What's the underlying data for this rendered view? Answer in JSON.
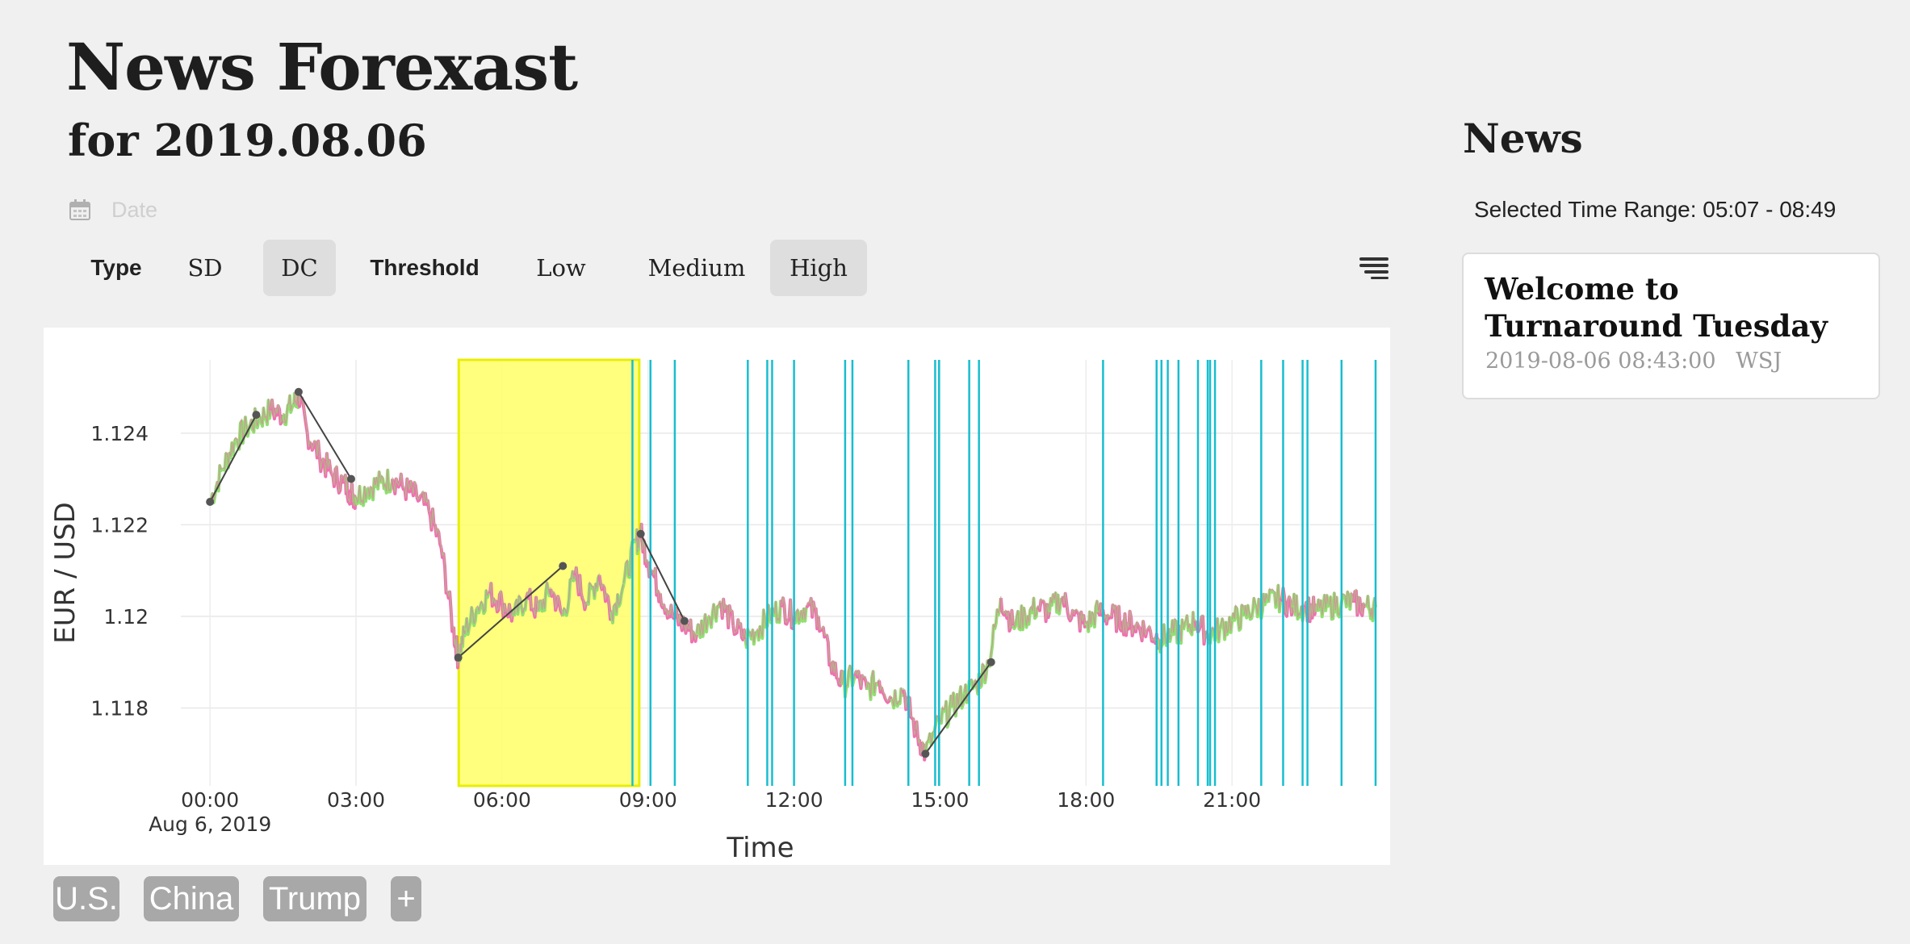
{
  "header": {
    "title": "News Forexast",
    "subtitle": "for 2019.08.06",
    "date_placeholder": "Date"
  },
  "controls": {
    "type_label": "Type",
    "type_options": [
      "SD",
      "DC"
    ],
    "type_selected": "DC",
    "threshold_label": "Threshold",
    "threshold_options": [
      "Low",
      "Medium",
      "High"
    ],
    "threshold_selected": "High",
    "menu_icon": "hamburger-menu-icon"
  },
  "tags": [
    "U.S.",
    "China",
    "Trump",
    "+"
  ],
  "news": {
    "title": "News",
    "time_range_label": "Selected Time Range:",
    "time_range": "05:07 - 08:49",
    "items": [
      {
        "headline": "Welcome to Turnaround Tuesday",
        "timestamp": "2019-08-06 08:43:00",
        "source": "WSJ"
      }
    ]
  },
  "colors": {
    "background": "#f0f0f0",
    "selection": "#ffff66",
    "event_line": "#17becf",
    "price_up": "#90e070",
    "price_down": "#f070b0",
    "trend_line": "#444444",
    "tag": "#a8a8a8"
  },
  "chart_data": {
    "type": "line",
    "xlabel": "Time",
    "ylabel": "EUR / USD",
    "x_range_hours": [
      -0.6,
      23.95
    ],
    "ylim": [
      1.1163,
      1.1256
    ],
    "yticks": [
      1.118,
      1.12,
      1.122,
      1.124
    ],
    "ytick_labels": [
      "1.118",
      "1.12",
      "1.122",
      "1.124"
    ],
    "xticks_hours": [
      0,
      3,
      6,
      9,
      12,
      15,
      18,
      21
    ],
    "xtick_labels": [
      "00:00",
      "03:00",
      "06:00",
      "09:00",
      "12:00",
      "15:00",
      "18:00",
      "21:00"
    ],
    "x_date_label": "Aug 6, 2019",
    "grid": true,
    "price_series": [
      [
        0.0,
        1.1225
      ],
      [
        0.25,
        1.1232
      ],
      [
        0.5,
        1.1238
      ],
      [
        0.75,
        1.1241
      ],
      [
        1.0,
        1.1243
      ],
      [
        1.25,
        1.1245
      ],
      [
        1.5,
        1.1244
      ],
      [
        1.7,
        1.1246
      ],
      [
        1.82,
        1.1248
      ],
      [
        2.0,
        1.124
      ],
      [
        2.25,
        1.1235
      ],
      [
        2.5,
        1.1231
      ],
      [
        2.75,
        1.1229
      ],
      [
        2.9,
        1.1227
      ],
      [
        3.0,
        1.1226
      ],
      [
        3.25,
        1.1228
      ],
      [
        3.5,
        1.1229
      ],
      [
        3.75,
        1.123
      ],
      [
        4.0,
        1.1228
      ],
      [
        4.25,
        1.1226
      ],
      [
        4.5,
        1.1223
      ],
      [
        4.75,
        1.1215
      ],
      [
        5.0,
        1.1197
      ],
      [
        5.1,
        1.1191
      ],
      [
        5.25,
        1.1197
      ],
      [
        5.5,
        1.1202
      ],
      [
        5.75,
        1.1205
      ],
      [
        6.0,
        1.1203
      ],
      [
        6.25,
        1.12
      ],
      [
        6.5,
        1.1204
      ],
      [
        6.75,
        1.1201
      ],
      [
        7.0,
        1.1206
      ],
      [
        7.25,
        1.12
      ],
      [
        7.5,
        1.1209
      ],
      [
        7.75,
        1.1203
      ],
      [
        8.0,
        1.1209
      ],
      [
        8.25,
        1.1201
      ],
      [
        8.5,
        1.1207
      ],
      [
        8.75,
        1.1216
      ],
      [
        8.85,
        1.1218
      ],
      [
        9.0,
        1.1212
      ],
      [
        9.25,
        1.1205
      ],
      [
        9.5,
        1.12
      ],
      [
        9.75,
        1.1198
      ],
      [
        10.0,
        1.1196
      ],
      [
        10.25,
        1.12
      ],
      [
        10.5,
        1.1203
      ],
      [
        10.75,
        1.1198
      ],
      [
        11.0,
        1.1195
      ],
      [
        11.25,
        1.1197
      ],
      [
        11.5,
        1.12
      ],
      [
        11.75,
        1.1202
      ],
      [
        12.0,
        1.12
      ],
      [
        12.25,
        1.1202
      ],
      [
        12.5,
        1.12
      ],
      [
        12.75,
        1.119
      ],
      [
        13.0,
        1.1185
      ],
      [
        13.25,
        1.1187
      ],
      [
        13.5,
        1.1184
      ],
      [
        13.75,
        1.1186
      ],
      [
        14.0,
        1.1182
      ],
      [
        14.25,
        1.1184
      ],
      [
        14.5,
        1.1175
      ],
      [
        14.7,
        1.117
      ],
      [
        15.0,
        1.1177
      ],
      [
        15.25,
        1.118
      ],
      [
        15.5,
        1.1183
      ],
      [
        15.75,
        1.1185
      ],
      [
        16.0,
        1.119
      ],
      [
        16.25,
        1.1204
      ],
      [
        16.5,
        1.1198
      ],
      [
        16.75,
        1.12
      ],
      [
        17.0,
        1.1202
      ],
      [
        17.25,
        1.1201
      ],
      [
        17.5,
        1.1204
      ],
      [
        17.75,
        1.12
      ],
      [
        18.0,
        1.1198
      ],
      [
        18.25,
        1.1201
      ],
      [
        18.5,
        1.12
      ],
      [
        18.75,
        1.1199
      ],
      [
        19.0,
        1.1198
      ],
      [
        19.25,
        1.1197
      ],
      [
        19.5,
        1.1195
      ],
      [
        19.75,
        1.1196
      ],
      [
        20.0,
        1.1197
      ],
      [
        20.25,
        1.1199
      ],
      [
        20.5,
        1.1196
      ],
      [
        20.75,
        1.1197
      ],
      [
        21.0,
        1.1199
      ],
      [
        21.25,
        1.12
      ],
      [
        21.5,
        1.1202
      ],
      [
        21.75,
        1.1203
      ],
      [
        22.0,
        1.1204
      ],
      [
        22.25,
        1.1202
      ],
      [
        22.5,
        1.1202
      ],
      [
        22.75,
        1.1201
      ],
      [
        23.0,
        1.1202
      ],
      [
        23.25,
        1.1203
      ],
      [
        23.5,
        1.1203
      ],
      [
        23.75,
        1.1202
      ],
      [
        23.95,
        1.1202
      ]
    ],
    "trend_segments": [
      {
        "x": [
          0.0,
          0.95
        ],
        "y": [
          1.1225,
          1.1244
        ]
      },
      {
        "x": [
          1.82,
          2.9
        ],
        "y": [
          1.1249,
          1.123
        ]
      },
      {
        "x": [
          5.1,
          7.25
        ],
        "y": [
          1.1191,
          1.1211
        ]
      },
      {
        "x": [
          8.85,
          9.75
        ],
        "y": [
          1.1218,
          1.1199
        ]
      },
      {
        "x": [
          14.7,
          16.05
        ],
        "y": [
          1.117,
          1.119
        ]
      }
    ],
    "selected_range_hours": [
      5.11,
      8.82
    ],
    "event_lines_hours": [
      8.68,
      9.05,
      9.55,
      11.05,
      11.45,
      11.55,
      12.0,
      13.05,
      13.2,
      14.35,
      14.9,
      14.98,
      15.6,
      15.8,
      18.35,
      19.45,
      19.55,
      19.68,
      19.9,
      20.3,
      20.5,
      20.55,
      20.65,
      21.6,
      22.05,
      22.45,
      22.55,
      23.25,
      23.95
    ]
  }
}
